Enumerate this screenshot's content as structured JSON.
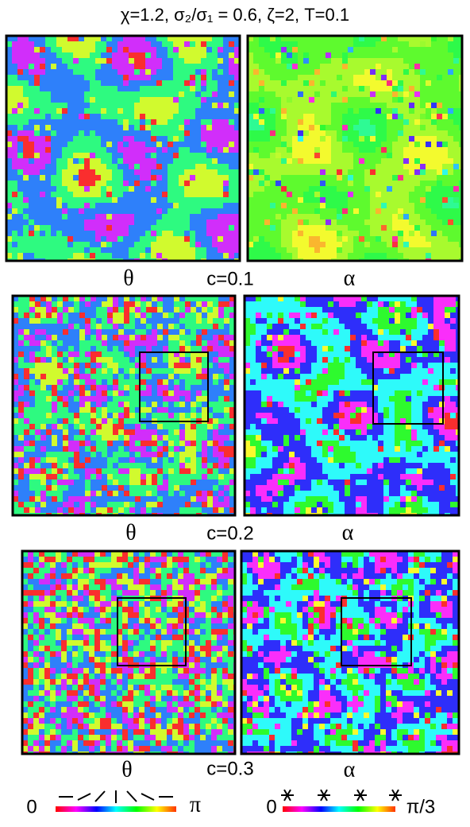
{
  "title": "χ=1.2, σ₂/σ₁ = 0.6, ζ=2, T=0.1",
  "rows": [
    {
      "left": "θ",
      "middle": "c=0.1",
      "right": "α"
    },
    {
      "left": "θ",
      "middle": "c=0.2",
      "right": "α"
    },
    {
      "left": "θ",
      "middle": "c=0.3",
      "right": "α"
    }
  ],
  "colorbars": [
    {
      "min": "0",
      "max": "π"
    },
    {
      "min": "0",
      "max": "π/3"
    }
  ]
}
